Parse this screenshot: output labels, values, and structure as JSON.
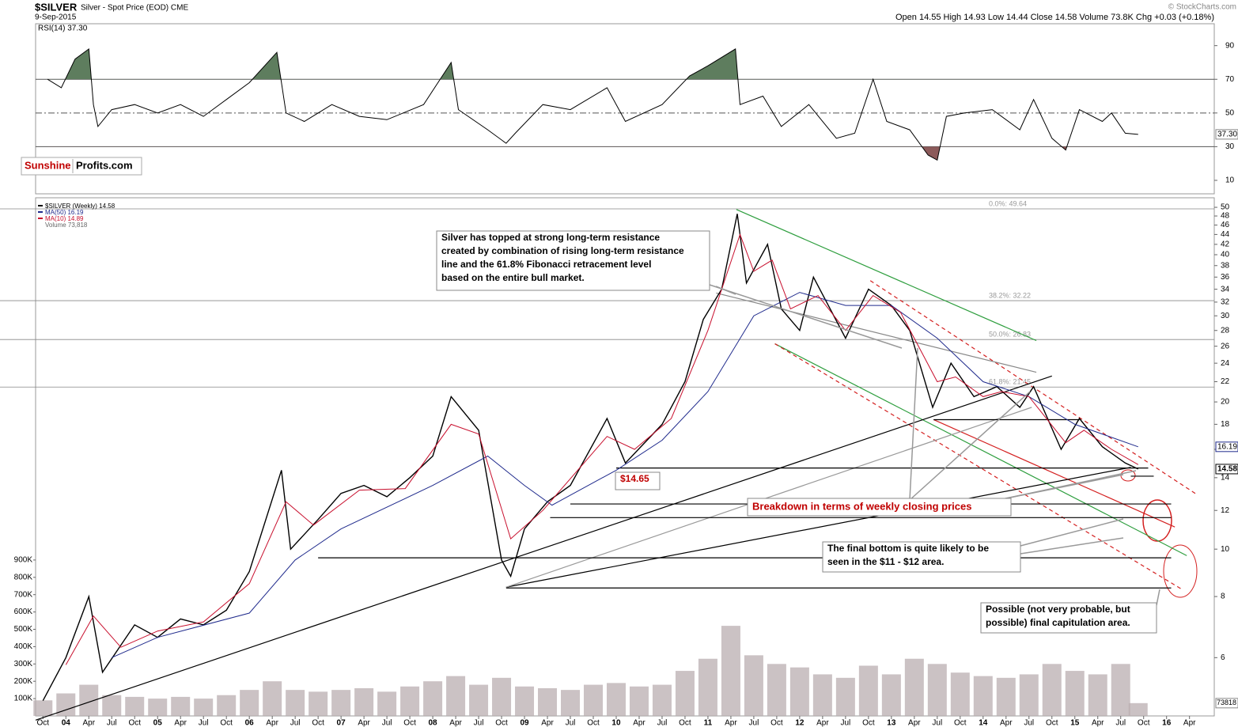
{
  "header": {
    "symbol": "$SILVER",
    "description": "Silver - Spot Price (EOD) CME",
    "date": "9-Sep-2015",
    "quote": "Open 14.55  High 14.93  Low 14.44  Close 14.58  Volume 73.8K  Chg +0.03 (+0.18%)",
    "credit": "© StockCharts.com"
  },
  "logo": {
    "part1": "Sunshine",
    "part2": "Profits.com"
  },
  "chart_data": [
    {
      "type": "line",
      "title": "RSI(14) 37.30",
      "last_label": "37.30",
      "xlim": [
        2003.67,
        2016.52
      ],
      "ylim": [
        2,
        103
      ],
      "yticks": [
        10,
        30,
        50,
        70,
        90
      ],
      "reference_lines": [
        30,
        50,
        70
      ],
      "overbought_color": "#5e7d5e",
      "oversold_color": "#8c5a5a",
      "x": [
        2003.8,
        2003.95,
        2004.1,
        2004.25,
        2004.3,
        2004.35,
        2004.5,
        2004.75,
        2005.0,
        2005.25,
        2005.5,
        2005.75,
        2006.0,
        2006.3,
        2006.4,
        2006.6,
        2006.9,
        2007.2,
        2007.5,
        2007.9,
        2008.2,
        2008.28,
        2008.6,
        2008.8,
        2008.9,
        2009.2,
        2009.5,
        2009.9,
        2010.1,
        2010.5,
        2010.8,
        2011.0,
        2011.3,
        2011.35,
        2011.6,
        2011.8,
        2012.1,
        2012.4,
        2012.6,
        2012.8,
        2012.95,
        2013.2,
        2013.4,
        2013.5,
        2013.6,
        2013.8,
        2014.1,
        2014.4,
        2014.55,
        2014.75,
        2014.9,
        2015.05,
        2015.3,
        2015.4,
        2015.55,
        2015.69
      ],
      "series": [
        {
          "name": "RSI(14)",
          "color": "#000000",
          "values": [
            70,
            65,
            82,
            88,
            55,
            42,
            52,
            55,
            50,
            55,
            48,
            58,
            68,
            86,
            50,
            45,
            55,
            48,
            46,
            55,
            80,
            52,
            40,
            32,
            38,
            55,
            52,
            65,
            45,
            55,
            72,
            78,
            88,
            55,
            60,
            42,
            55,
            35,
            38,
            70,
            45,
            40,
            25,
            22,
            48,
            50,
            52,
            40,
            58,
            35,
            28,
            52,
            45,
            50,
            38,
            37.3
          ]
        }
      ]
    },
    {
      "type": "line",
      "log_scale": true,
      "xlim": [
        2003.67,
        2016.52
      ],
      "ylim": [
        4.56,
        52.3
      ],
      "yticks": [
        6,
        8,
        10,
        12,
        14,
        16,
        18,
        20,
        22,
        24,
        26,
        28,
        30,
        32,
        34,
        36,
        38,
        40,
        42,
        44,
        46,
        48,
        50
      ],
      "xticks": [
        {
          "value": 2003.75,
          "label": "Oct"
        },
        {
          "value": 2004,
          "label": "04"
        },
        {
          "value": 2004.25,
          "label": "Apr"
        },
        {
          "value": 2004.5,
          "label": "Jul"
        },
        {
          "value": 2004.75,
          "label": "Oct"
        },
        {
          "value": 2005,
          "label": "05"
        },
        {
          "value": 2005.25,
          "label": "Apr"
        },
        {
          "value": 2005.5,
          "label": "Jul"
        },
        {
          "value": 2005.75,
          "label": "Oct"
        },
        {
          "value": 2006,
          "label": "06"
        },
        {
          "value": 2006.25,
          "label": "Apr"
        },
        {
          "value": 2006.5,
          "label": "Jul"
        },
        {
          "value": 2006.75,
          "label": "Oct"
        },
        {
          "value": 2007,
          "label": "07"
        },
        {
          "value": 2007.25,
          "label": "Apr"
        },
        {
          "value": 2007.5,
          "label": "Jul"
        },
        {
          "value": 2007.75,
          "label": "Oct"
        },
        {
          "value": 2008,
          "label": "08"
        },
        {
          "value": 2008.25,
          "label": "Apr"
        },
        {
          "value": 2008.5,
          "label": "Jul"
        },
        {
          "value": 2008.75,
          "label": "Oct"
        },
        {
          "value": 2009,
          "label": "09"
        },
        {
          "value": 2009.25,
          "label": "Apr"
        },
        {
          "value": 2009.5,
          "label": "Jul"
        },
        {
          "value": 2009.75,
          "label": "Oct"
        },
        {
          "value": 2010,
          "label": "10"
        },
        {
          "value": 2010.25,
          "label": "Apr"
        },
        {
          "value": 2010.5,
          "label": "Jul"
        },
        {
          "value": 2010.75,
          "label": "Oct"
        },
        {
          "value": 2011,
          "label": "11"
        },
        {
          "value": 2011.25,
          "label": "Apr"
        },
        {
          "value": 2011.5,
          "label": "Jul"
        },
        {
          "value": 2011.75,
          "label": "Oct"
        },
        {
          "value": 2012,
          "label": "12"
        },
        {
          "value": 2012.25,
          "label": "Apr"
        },
        {
          "value": 2012.5,
          "label": "Jul"
        },
        {
          "value": 2012.75,
          "label": "Oct"
        },
        {
          "value": 2013,
          "label": "13"
        },
        {
          "value": 2013.25,
          "label": "Apr"
        },
        {
          "value": 2013.5,
          "label": "Jul"
        },
        {
          "value": 2013.75,
          "label": "Oct"
        },
        {
          "value": 2014,
          "label": "14"
        },
        {
          "value": 2014.25,
          "label": "Apr"
        },
        {
          "value": 2014.5,
          "label": "Jul"
        },
        {
          "value": 2014.75,
          "label": "Oct"
        },
        {
          "value": 2015,
          "label": "15"
        },
        {
          "value": 2015.25,
          "label": "Apr"
        },
        {
          "value": 2015.5,
          "label": "Jul"
        },
        {
          "value": 2015.75,
          "label": "Oct"
        },
        {
          "value": 2016,
          "label": "16"
        },
        {
          "value": 2016.25,
          "label": "Apr"
        }
      ],
      "series": [
        {
          "name": "$SILVER (Weekly) 14.58",
          "color": "#000000",
          "x": [
            2003.75,
            2004.0,
            2004.25,
            2004.4,
            2004.75,
            2005.0,
            2005.25,
            2005.5,
            2005.75,
            2006.0,
            2006.35,
            2006.45,
            2006.75,
            2007.0,
            2007.25,
            2007.5,
            2007.75,
            2008.0,
            2008.2,
            2008.5,
            2008.75,
            2008.85,
            2009.0,
            2009.25,
            2009.5,
            2009.9,
            2010.1,
            2010.5,
            2010.75,
            2010.95,
            2011.15,
            2011.32,
            2011.42,
            2011.65,
            2011.8,
            2012.0,
            2012.15,
            2012.5,
            2012.75,
            2013.0,
            2013.2,
            2013.45,
            2013.65,
            2013.9,
            2014.15,
            2014.4,
            2014.55,
            2014.85,
            2015.05,
            2015.3,
            2015.55,
            2015.69
          ],
          "values": [
            4.9,
            6.0,
            8.0,
            5.6,
            7.0,
            6.6,
            7.2,
            7.0,
            7.5,
            9.0,
            14.5,
            10.0,
            11.5,
            13.0,
            13.5,
            12.8,
            14.0,
            15.5,
            20.5,
            17.5,
            9.5,
            8.8,
            11.0,
            12.5,
            13.5,
            18.5,
            15.0,
            18.0,
            22.0,
            29.5,
            34,
            48.5,
            35,
            42,
            31,
            28,
            36,
            27,
            34,
            31.5,
            28,
            19.5,
            24,
            20.5,
            21.5,
            19.5,
            21.5,
            16,
            18.5,
            16.2,
            15.0,
            14.58
          ]
        },
        {
          "name": "MA(50) 16.19",
          "color": "#1f2a8c",
          "x": [
            2004.5,
            2005.0,
            2006.0,
            2006.5,
            2007.0,
            2008.0,
            2008.6,
            2009.0,
            2009.3,
            2010.0,
            2010.5,
            2011.0,
            2011.5,
            2012.0,
            2012.5,
            2013.0,
            2013.5,
            2014.0,
            2014.5,
            2015.0,
            2015.69
          ],
          "values": [
            6.0,
            6.6,
            7.4,
            9.5,
            11.0,
            13.5,
            15.5,
            13.5,
            12.3,
            14.5,
            16.7,
            21,
            30,
            33.5,
            31.5,
            31.5,
            27,
            22,
            20.5,
            18,
            16.19
          ]
        },
        {
          "name": "MA(10) 14.89",
          "color": "#c8102e",
          "x": [
            2004.0,
            2004.3,
            2004.6,
            2005.0,
            2005.5,
            2006.0,
            2006.4,
            2006.7,
            2007.2,
            2007.7,
            2008.2,
            2008.5,
            2008.85,
            2009.2,
            2009.9,
            2010.2,
            2010.6,
            2011.0,
            2011.35,
            2011.5,
            2011.7,
            2011.9,
            2012.2,
            2012.5,
            2012.8,
            2013.1,
            2013.5,
            2013.7,
            2014.0,
            2014.2,
            2014.5,
            2014.9,
            2015.1,
            2015.4,
            2015.69
          ],
          "values": [
            5.8,
            7.3,
            6.3,
            6.8,
            7.1,
            8.5,
            12.5,
            11.2,
            13.2,
            13.3,
            18.0,
            17.2,
            10.5,
            12,
            17.0,
            16.0,
            18.5,
            28,
            44,
            37,
            39,
            31,
            33,
            28,
            33,
            30.5,
            22,
            22.5,
            20.5,
            21,
            20.5,
            16.5,
            17.5,
            16,
            14.89
          ]
        }
      ],
      "volume": {
        "name": "Volume 73,818",
        "color": "#b9aeb0",
        "ylim": [
          0,
          1000000
        ],
        "yticks": [
          {
            "value": 100000,
            "label": "100K"
          },
          {
            "value": 200000,
            "label": "200K"
          },
          {
            "value": 300000,
            "label": "300K"
          },
          {
            "value": 400000,
            "label": "400K"
          },
          {
            "value": 500000,
            "label": "500K"
          },
          {
            "value": 600000,
            "label": "600K"
          },
          {
            "value": 700000,
            "label": "700K"
          },
          {
            "value": 800000,
            "label": "800K"
          },
          {
            "value": 900000,
            "label": "900K"
          }
        ],
        "x": [
          2003.75,
          2004.0,
          2004.25,
          2004.5,
          2004.75,
          2005.0,
          2005.25,
          2005.5,
          2005.75,
          2006.0,
          2006.25,
          2006.5,
          2006.75,
          2007.0,
          2007.25,
          2007.5,
          2007.75,
          2008.0,
          2008.25,
          2008.5,
          2008.75,
          2009.0,
          2009.25,
          2009.5,
          2009.75,
          2010.0,
          2010.25,
          2010.5,
          2010.75,
          2011.0,
          2011.25,
          2011.5,
          2011.75,
          2012.0,
          2012.25,
          2012.5,
          2012.75,
          2013.0,
          2013.25,
          2013.5,
          2013.75,
          2014.0,
          2014.25,
          2014.5,
          2014.75,
          2015.0,
          2015.25,
          2015.5,
          2015.69
        ],
        "values": [
          90000,
          130000,
          180000,
          120000,
          110000,
          100000,
          110000,
          100000,
          120000,
          150000,
          200000,
          150000,
          140000,
          150000,
          160000,
          140000,
          170000,
          200000,
          230000,
          180000,
          220000,
          170000,
          160000,
          150000,
          180000,
          190000,
          170000,
          180000,
          260000,
          330000,
          520000,
          350000,
          300000,
          280000,
          240000,
          220000,
          290000,
          240000,
          330000,
          300000,
          250000,
          230000,
          220000,
          240000,
          300000,
          260000,
          240000,
          300000,
          73818
        ]
      },
      "fib": [
        {
          "value": 49.64,
          "label": "0.0%: 49.64"
        },
        {
          "value": 32.22,
          "label": "38.2%: 32.22"
        },
        {
          "value": 26.83,
          "label": "50.0%: 26.83"
        },
        {
          "value": 21.45,
          "label": "61.8%: 21.45"
        }
      ],
      "lines": [
        {
          "x": [
            2011.31,
            2014.58
          ],
          "y": [
            49.5,
            26.7
          ],
          "color": "#2e9e3e",
          "dash": false
        },
        {
          "x": [
            2011.73,
            2016.22
          ],
          "y": [
            26.3,
            9.7
          ],
          "color": "#2e9e3e",
          "dash": false
        },
        {
          "x": [
            2013.46,
            2016.09
          ],
          "y": [
            18.4,
            11.1
          ],
          "color": "#d42020",
          "dash": false
        },
        {
          "x": [
            2012.77,
            2016.34
          ],
          "y": [
            35.4,
            12.9
          ],
          "color": "#d42020",
          "dash": true
        },
        {
          "x": [
            2011.73,
            2016.17
          ],
          "y": [
            26.3,
            8.27
          ],
          "color": "#d42020",
          "dash": true
        },
        {
          "x": [
            2003.67,
            2014.75
          ],
          "y": [
            4.47,
            22.6
          ],
          "color": "#000000",
          "dash": false
        },
        {
          "x": [
            2008.8,
            2015.61
          ],
          "y": [
            8.36,
            14.7
          ],
          "color": "#000000",
          "dash": false
        },
        {
          "x": [
            2008.8,
            2014.53
          ],
          "y": [
            8.36,
            19.5
          ],
          "color": "#999999",
          "dash": false
        },
        {
          "x": [
            2011.09,
            2014.58
          ],
          "y": [
            33.4,
            23.0
          ],
          "color": "#888888",
          "dash": false
        },
        {
          "x": [
            2010.0,
            2015.8
          ],
          "y": [
            14.65,
            14.65
          ],
          "color": "#000000",
          "dash": false
        },
        {
          "x": [
            2015.61,
            2015.86
          ],
          "y": [
            14.1,
            14.1
          ],
          "color": "#000000",
          "dash": false
        },
        {
          "x": [
            2009.5,
            2016.05
          ],
          "y": [
            12.37,
            12.37
          ],
          "color": "#000000",
          "dash": false
        },
        {
          "x": [
            2009.28,
            2016.05
          ],
          "y": [
            11.6,
            11.6
          ],
          "color": "#000000",
          "dash": false
        },
        {
          "x": [
            2006.75,
            2016.05
          ],
          "y": [
            9.6,
            9.6
          ],
          "color": "#000000",
          "dash": false
        },
        {
          "x": [
            2008.8,
            2016.05
          ],
          "y": [
            8.33,
            8.33
          ],
          "color": "#000000",
          "dash": false
        },
        {
          "x": [
            2013.46,
            2015.05
          ],
          "y": [
            18.4,
            18.4
          ],
          "color": "#000000",
          "dash": false
        }
      ],
      "annotations": [
        {
          "lines": [
            "Silver has topped at strong long-term resistance",
            "created by combination of rising long-term resistance",
            "line and the 61.8% Fibonacci retracement level",
            "based on the entire bull market."
          ],
          "color": "#000000"
        },
        {
          "lines": [
            "$14.65"
          ],
          "color": "#c00000"
        },
        {
          "lines": [
            "Breakdown in terms of weekly closing prices"
          ],
          "color": "#c00000"
        },
        {
          "lines": [
            "The final bottom is quite likely to be",
            "seen in the $11 - $12 area."
          ],
          "color": "#000000"
        },
        {
          "lines": [
            "Possible (not very probable, but",
            "possible) final capitulation area."
          ],
          "color": "#000000"
        }
      ]
    }
  ]
}
